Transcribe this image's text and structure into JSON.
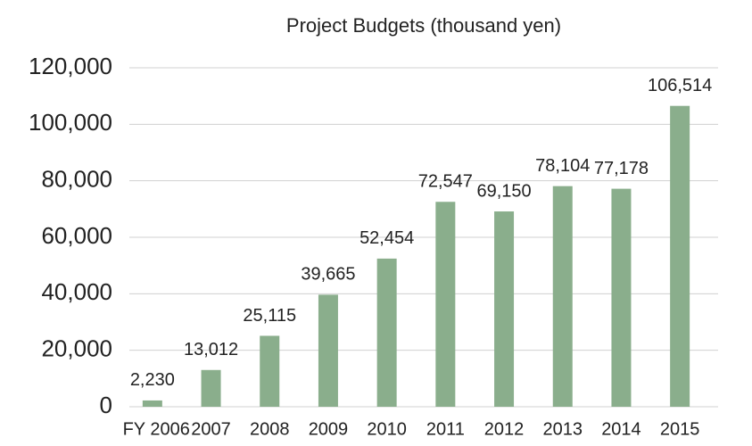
{
  "chart_data": {
    "type": "bar",
    "title": "Project Budgets (thousand yen)",
    "categories": [
      "FY 2006",
      "2007",
      "2008",
      "2009",
      "2010",
      "2011",
      "2012",
      "2013",
      "2014",
      "2015"
    ],
    "values": [
      2230,
      13012,
      25115,
      39665,
      52454,
      72547,
      69150,
      78104,
      77178,
      106514
    ],
    "value_labels": [
      "2,230",
      "13,012",
      "25,115",
      "39,665",
      "52,454",
      "72,547",
      "69,150",
      "78,104",
      "77,178",
      "106,514"
    ],
    "color": "#8aae8c",
    "ylim": [
      0,
      120000
    ],
    "yticks": [
      0,
      {
        "value": 20000,
        "label": "20,000"
      },
      {
        "value": 40000,
        "label": "40,000"
      },
      {
        "value": 60000,
        "label": "60,000"
      },
      {
        "value": 80000,
        "label": "80,000"
      },
      {
        "value": 100000,
        "label": "100,000"
      },
      {
        "value": 120000,
        "label": "120,000"
      }
    ],
    "grid": true
  }
}
